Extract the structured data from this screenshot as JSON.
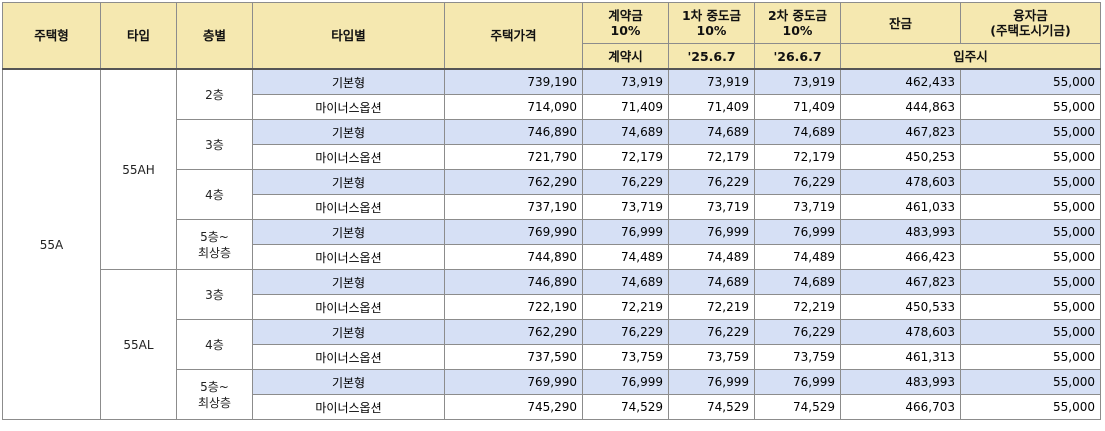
{
  "headers": {
    "house_type": "주택형",
    "type": "타입",
    "floor": "층별",
    "by_type": "타입별",
    "price": "주택가격",
    "deposit": "계약금\n10%",
    "interim1": "1차 중도금\n10%",
    "interim2": "2차 중도금\n10%",
    "balance": "잔금",
    "loan": "융자금\n(주택도시기금)",
    "deposit_when": "계약시",
    "interim1_when": "'25.6.7",
    "interim2_when": "'26.6.7",
    "balance_when": "입주시"
  },
  "house_type_value": "55A",
  "types": [
    "55AH",
    "55AL"
  ],
  "floors": {
    "f2": "2층",
    "f3": "3층",
    "f4": "4층",
    "f5": "5층~\n최상층"
  },
  "options": {
    "basic": "기본형",
    "minus": "마이너스옵션"
  },
  "rows": [
    [
      "739,190",
      "73,919",
      "73,919",
      "73,919",
      "462,433",
      "55,000"
    ],
    [
      "714,090",
      "71,409",
      "71,409",
      "71,409",
      "444,863",
      "55,000"
    ],
    [
      "746,890",
      "74,689",
      "74,689",
      "74,689",
      "467,823",
      "55,000"
    ],
    [
      "721,790",
      "72,179",
      "72,179",
      "72,179",
      "450,253",
      "55,000"
    ],
    [
      "762,290",
      "76,229",
      "76,229",
      "76,229",
      "478,603",
      "55,000"
    ],
    [
      "737,190",
      "73,719",
      "73,719",
      "73,719",
      "461,033",
      "55,000"
    ],
    [
      "769,990",
      "76,999",
      "76,999",
      "76,999",
      "483,993",
      "55,000"
    ],
    [
      "744,890",
      "74,489",
      "74,489",
      "74,489",
      "466,423",
      "55,000"
    ],
    [
      "746,890",
      "74,689",
      "74,689",
      "74,689",
      "467,823",
      "55,000"
    ],
    [
      "722,190",
      "72,219",
      "72,219",
      "72,219",
      "450,533",
      "55,000"
    ],
    [
      "762,290",
      "76,229",
      "76,229",
      "76,229",
      "478,603",
      "55,000"
    ],
    [
      "737,590",
      "73,759",
      "73,759",
      "73,759",
      "461,313",
      "55,000"
    ],
    [
      "769,990",
      "76,999",
      "76,999",
      "76,999",
      "483,993",
      "55,000"
    ],
    [
      "745,290",
      "74,529",
      "74,529",
      "74,529",
      "466,703",
      "55,000"
    ]
  ]
}
